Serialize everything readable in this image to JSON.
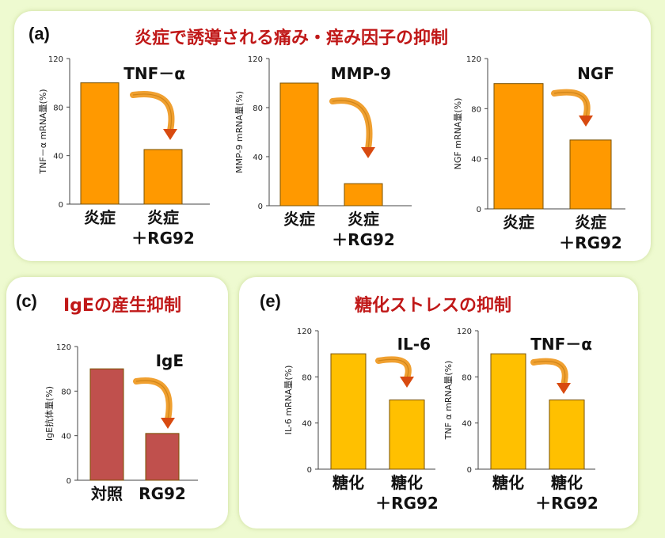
{
  "panel_a": {
    "label": "(a)",
    "title": "炎症で誘導される痛み・痒み因子の抑制"
  },
  "panel_c": {
    "label": "(c)",
    "title": "IgEの産生抑制"
  },
  "panel_e": {
    "label": "(e)",
    "title": "糖化ストレスの抑制"
  },
  "colors": {
    "orange": "#ff9900",
    "yellow": "#ffc000",
    "red": "#c0504d",
    "title_red": "#c01818",
    "arrow": "#f0a030"
  },
  "chart_data": [
    {
      "id": "a1",
      "type": "bar",
      "title": "TNF－α",
      "ylabel": "TNF－α mRNA量(%)",
      "categories": [
        [
          "炎症"
        ],
        [
          "炎症",
          "＋RG92"
        ]
      ],
      "values": [
        100,
        45
      ],
      "ylim": [
        0,
        120
      ],
      "yticks": [
        0,
        40,
        80,
        120
      ],
      "color": "#ff9900"
    },
    {
      "id": "a2",
      "type": "bar",
      "title": "MMP-9",
      "ylabel": "MMP-9 mRNA量(%)",
      "categories": [
        [
          "炎症"
        ],
        [
          "炎症",
          "＋RG92"
        ]
      ],
      "values": [
        100,
        18
      ],
      "ylim": [
        0,
        120
      ],
      "yticks": [
        0,
        40,
        80,
        120
      ],
      "color": "#ff9900"
    },
    {
      "id": "a3",
      "type": "bar",
      "title": "NGF",
      "ylabel": "NGF mRNA量(%)",
      "categories": [
        [
          "炎症"
        ],
        [
          "炎症",
          "＋RG92"
        ]
      ],
      "values": [
        100,
        55
      ],
      "ylim": [
        0,
        120
      ],
      "yticks": [
        0,
        40,
        80,
        120
      ],
      "color": "#ff9900"
    },
    {
      "id": "c1",
      "type": "bar",
      "title": "IgE",
      "ylabel": "IgE抗体量(%)",
      "categories": [
        [
          "対照"
        ],
        [
          "RG92"
        ]
      ],
      "values": [
        100,
        42
      ],
      "ylim": [
        0,
        120
      ],
      "yticks": [
        0,
        40,
        80,
        120
      ],
      "color": "#c0504d"
    },
    {
      "id": "e1",
      "type": "bar",
      "title": "IL-6",
      "ylabel": "IL-6 mRNA量(%)",
      "categories": [
        [
          "糖化"
        ],
        [
          "糖化",
          "＋RG92"
        ]
      ],
      "values": [
        100,
        60
      ],
      "ylim": [
        0,
        120
      ],
      "yticks": [
        0,
        40,
        80,
        120
      ],
      "color": "#ffc000"
    },
    {
      "id": "e2",
      "type": "bar",
      "title": "TNF－α",
      "ylabel": "TNF α mRNA量(%)",
      "categories": [
        [
          "糖化"
        ],
        [
          "糖化",
          "＋RG92"
        ]
      ],
      "values": [
        100,
        60
      ],
      "ylim": [
        0,
        120
      ],
      "yticks": [
        0,
        40,
        80,
        120
      ],
      "color": "#ffc000"
    }
  ]
}
